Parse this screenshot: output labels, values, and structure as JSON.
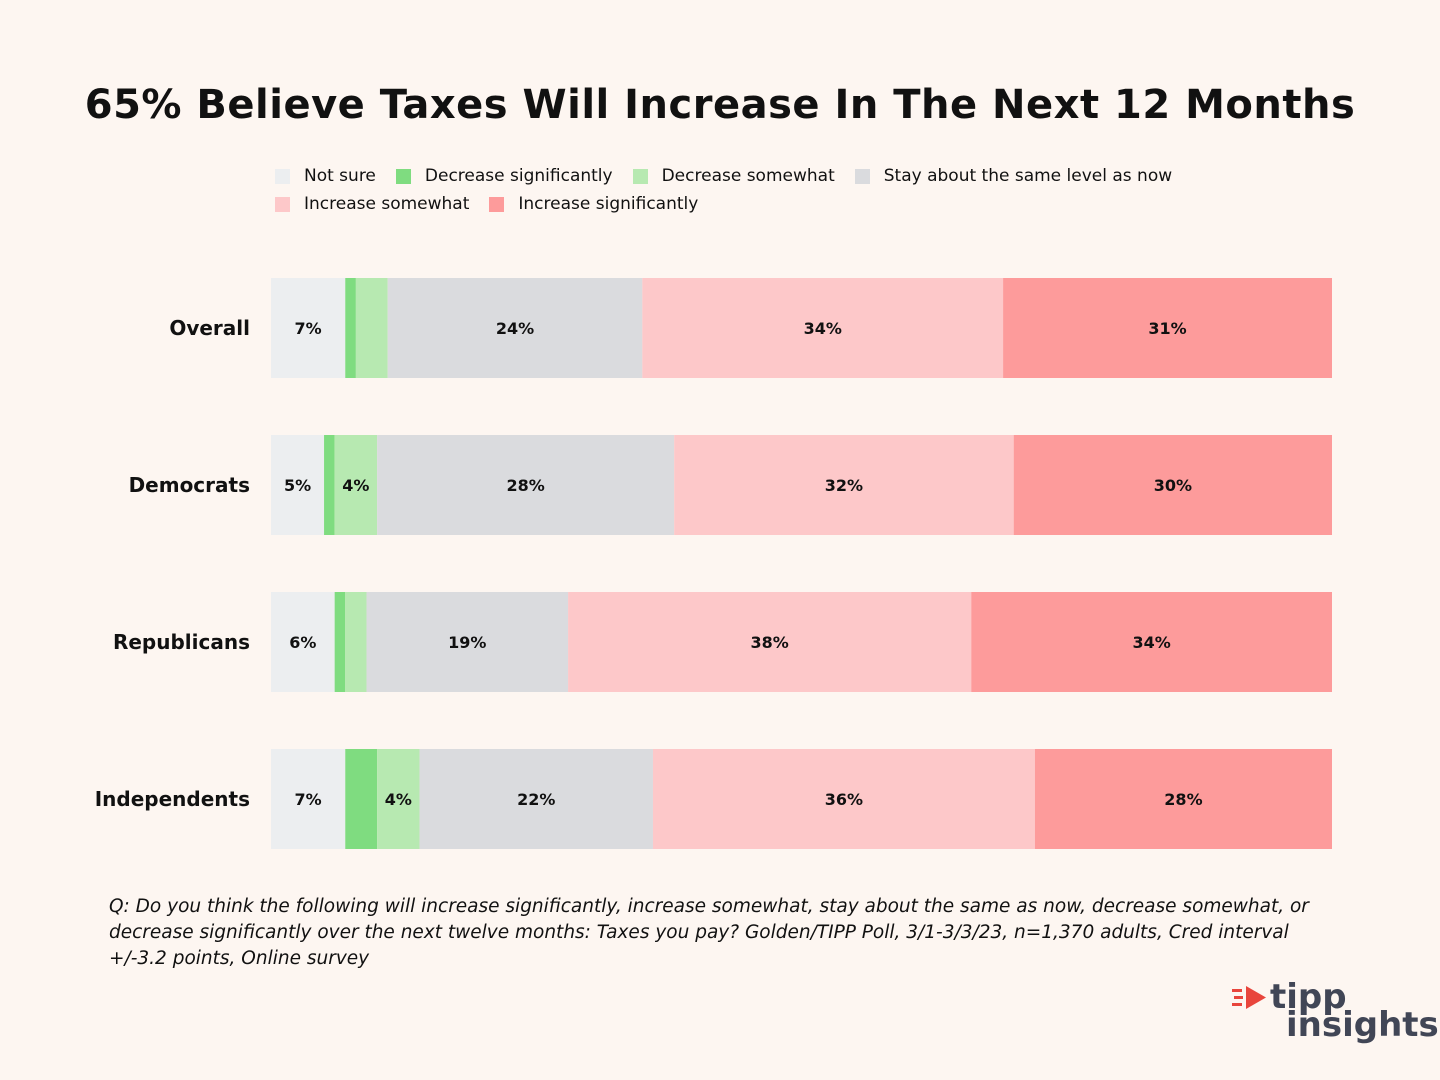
{
  "chart_data": {
    "type": "bar",
    "orientation": "horizontal",
    "stacked": true,
    "title": "65% Believe Taxes Will Increase In The Next 12 Months",
    "categories": [
      "Overall",
      "Democrats",
      "Republicans",
      "Independents"
    ],
    "series": [
      {
        "name": "Not sure",
        "color": "#eceef0",
        "values": [
          7,
          5,
          6,
          7
        ],
        "labels": [
          "7%",
          "5%",
          "6%",
          "7%"
        ]
      },
      {
        "name": "Decrease significantly",
        "color": "#7fdc80",
        "values": [
          1,
          1,
          1,
          3
        ],
        "labels": [
          "",
          "",
          "",
          ""
        ]
      },
      {
        "name": "Decrease somewhat",
        "color": "#b7e9b1",
        "values": [
          3,
          4,
          2,
          4
        ],
        "labels": [
          "",
          "4%",
          "",
          "4%"
        ]
      },
      {
        "name": "Stay about the same level as now",
        "color": "#dadbde",
        "values": [
          24,
          28,
          19,
          22
        ],
        "labels": [
          "24%",
          "28%",
          "19%",
          "22%"
        ]
      },
      {
        "name": "Increase somewhat",
        "color": "#fdc8c9",
        "values": [
          34,
          32,
          38,
          36
        ],
        "labels": [
          "34%",
          "32%",
          "38%",
          "36%"
        ]
      },
      {
        "name": "Increase significantly",
        "color": "#fd9b9b",
        "values": [
          31,
          30,
          34,
          28
        ],
        "labels": [
          "31%",
          "30%",
          "34%",
          "28%"
        ]
      }
    ],
    "legend_position": "top",
    "grid": false
  },
  "footnote": "Q:  Do you think the following will increase significantly, increase somewhat, stay about the same as now, decrease somewhat, or decrease significantly over the next twelve months: Taxes you pay? Golden/TIPP Poll, 3/1-3/3/23, n=1,370 adults, Cred interval +/-3.2 points, Online survey",
  "logo": {
    "line1": "tipp",
    "line2": "insights",
    "accent": "#e8453c"
  }
}
